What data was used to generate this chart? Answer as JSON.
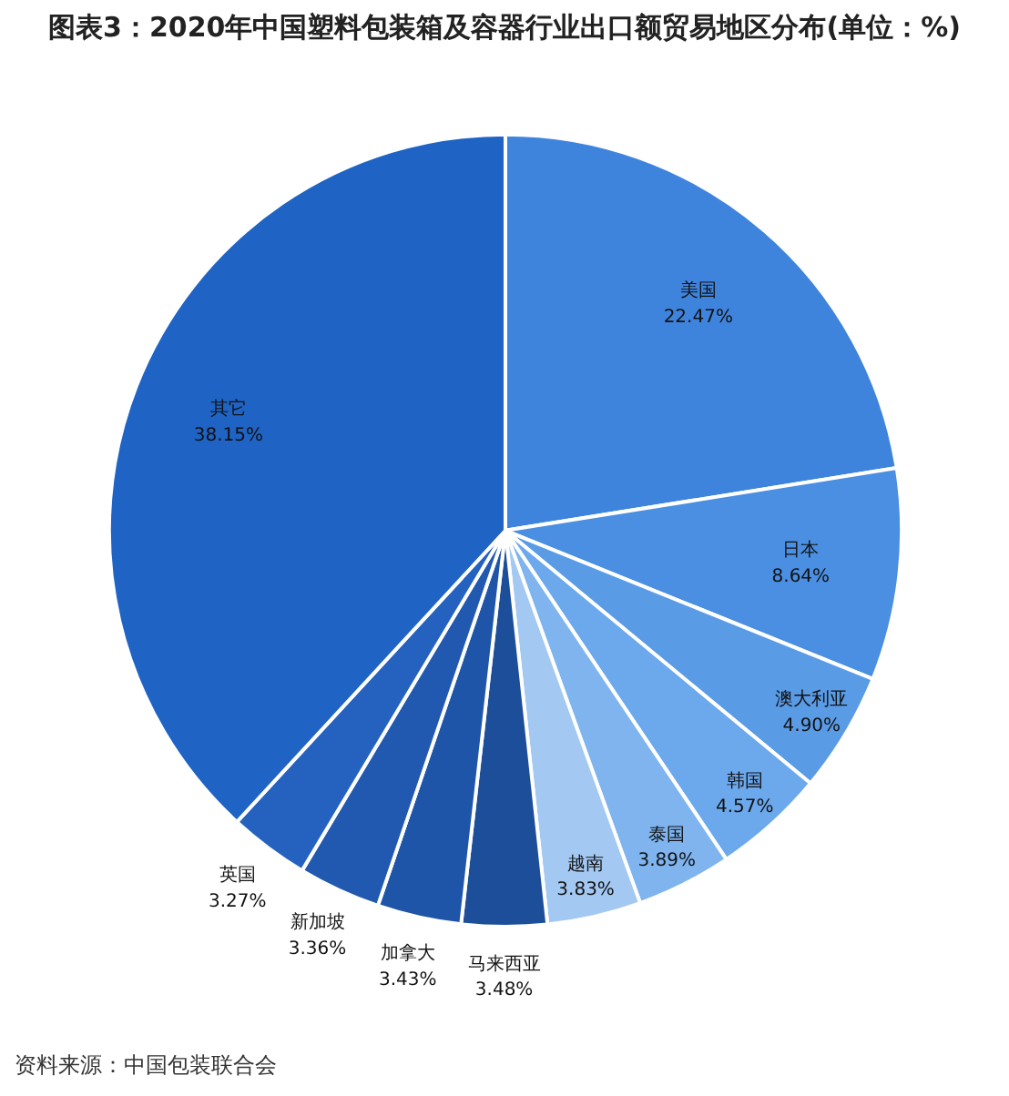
{
  "chart_data": {
    "type": "pie",
    "title": "图表3：2020年中国塑料包装箱及容器行业出口额贸易地区分布(单位：%)",
    "categories": [
      "美国",
      "日本",
      "澳大利亚",
      "韩国",
      "泰国",
      "越南",
      "马来西亚",
      "加拿大",
      "新加坡",
      "英国",
      "其它"
    ],
    "values": [
      22.47,
      8.64,
      4.9,
      4.57,
      3.89,
      3.83,
      3.48,
      3.43,
      3.36,
      3.27,
      38.15
    ],
    "value_labels": [
      "22.47%",
      "8.64%",
      "4.90%",
      "4.57%",
      "3.89%",
      "3.83%",
      "3.48%",
      "3.43%",
      "3.36%",
      "3.27%",
      "38.15%"
    ],
    "colors": [
      "#3f84dc",
      "#4a8fe2",
      "#5a9be6",
      "#6ca8ec",
      "#7fb4ef",
      "#a3c8f2",
      "#1c4e9a",
      "#1f55a8",
      "#2259b0",
      "#2562bf",
      "#1f63c4"
    ],
    "annotations": [
      "资料来源：中国包装联合会"
    ]
  }
}
